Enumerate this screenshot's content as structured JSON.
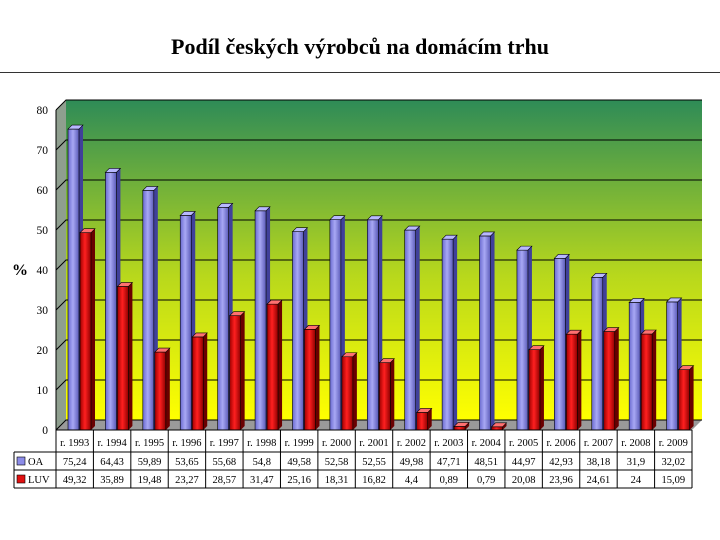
{
  "slide": {
    "title": "Podíl českých výrobců na domácím trhu"
  },
  "chart_data": {
    "type": "bar",
    "title": "",
    "ylabel": "%",
    "xlabel": "",
    "ylim": [
      0,
      80
    ],
    "yticks": [
      0,
      10,
      20,
      30,
      40,
      50,
      60,
      70,
      80
    ],
    "grid": true,
    "categories": [
      "r. 1993",
      "r. 1994",
      "r. 1995",
      "r. 1996",
      "r. 1997",
      "r. 1998",
      "r. 1999",
      "r. 2000",
      "r. 2001",
      "r. 2002",
      "r. 2003",
      "r. 2004",
      "r. 2005",
      "r. 2006",
      "r. 2007",
      "r. 2008",
      "r. 2009"
    ],
    "series": [
      {
        "name": "OA",
        "color": "#8c8ce8",
        "values": [
          75.24,
          64.43,
          59.89,
          53.65,
          55.68,
          54.8,
          49.58,
          52.58,
          52.55,
          49.98,
          47.71,
          48.51,
          44.97,
          42.93,
          38.18,
          31.9,
          32.02
        ],
        "labels": [
          "75,24",
          "64,43",
          "59,89",
          "53,65",
          "55,68",
          "54,8",
          "49,58",
          "52,58",
          "52,55",
          "49,98",
          "47,71",
          "48,51",
          "44,97",
          "42,93",
          "38,18",
          "31,9",
          "32,02"
        ]
      },
      {
        "name": "LUV",
        "color": "#e01010",
        "values": [
          49.32,
          35.89,
          19.48,
          23.27,
          28.57,
          31.47,
          25.16,
          18.31,
          16.82,
          4.4,
          0.89,
          0.79,
          20.08,
          23.96,
          24.61,
          24,
          15.09
        ],
        "labels": [
          "49,32",
          "35,89",
          "19,48",
          "23,27",
          "28,57",
          "31,47",
          "25,16",
          "18,31",
          "16,82",
          "4,4",
          "0,89",
          "0,79",
          "20,08",
          "23,96",
          "24,61",
          "24",
          "15,09"
        ]
      }
    ],
    "legend_position": "data-table",
    "background_gradient": [
      "#2e8b57",
      "#ffff00"
    ]
  }
}
